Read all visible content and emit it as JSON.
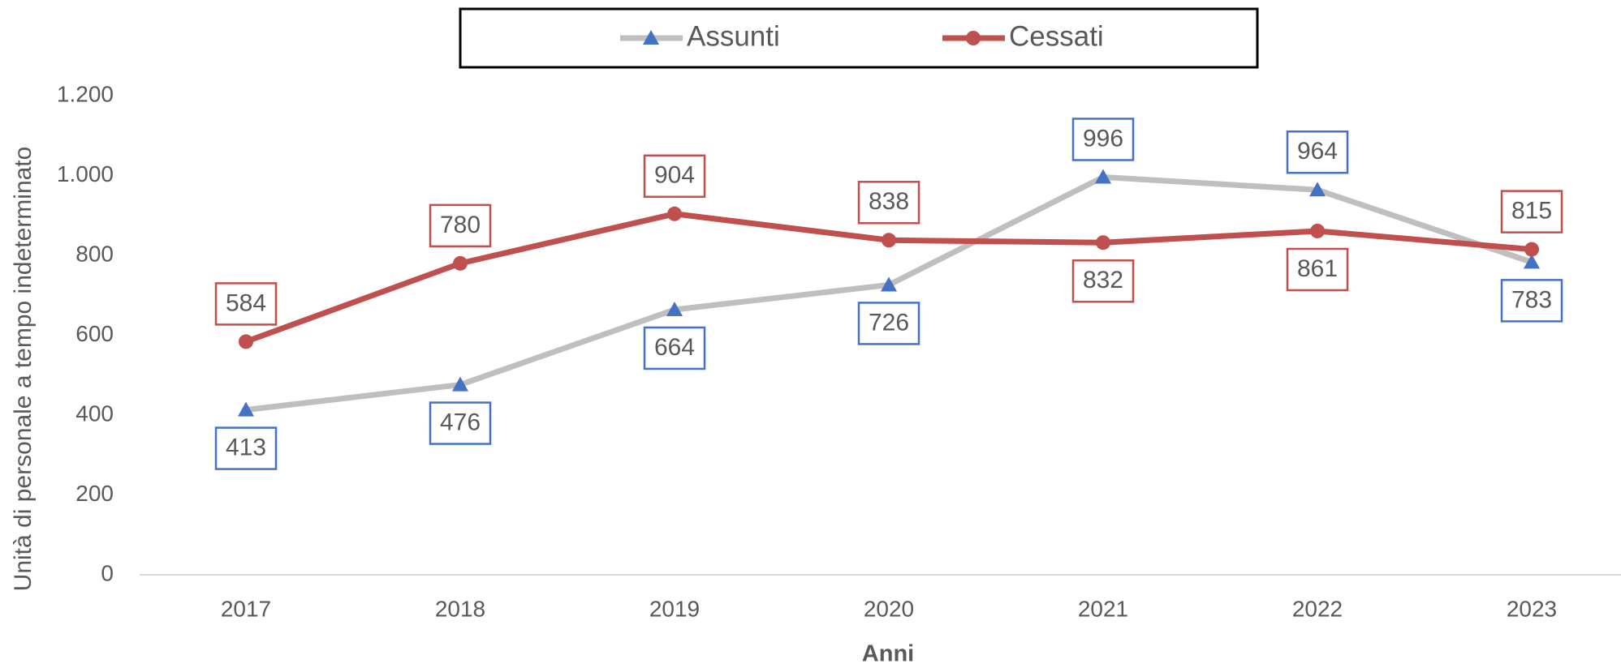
{
  "chart_data": {
    "type": "line",
    "x_label": "Anni",
    "y_label": "Unità di personale a tempo indeterminato",
    "categories": [
      "2017",
      "2018",
      "2019",
      "2020",
      "2021",
      "2022",
      "2023"
    ],
    "series": [
      {
        "name": "Assunti",
        "color": "#bfbfbf",
        "marker_color": "#4472c4",
        "marker": "triangle",
        "values": [
          413,
          476,
          664,
          726,
          996,
          964,
          783
        ]
      },
      {
        "name": "Cessati",
        "color": "#c0504d",
        "marker_color": "#c0504d",
        "marker": "circle",
        "values": [
          584,
          780,
          904,
          838,
          832,
          861,
          815
        ]
      }
    ],
    "ylim": [
      0,
      1200
    ],
    "yticks": [
      0,
      200,
      400,
      600,
      800,
      {
        "value": 1000,
        "label": "1.000"
      },
      {
        "value": 1200,
        "label": "1.200"
      }
    ],
    "legend": "top",
    "grid": false
  }
}
